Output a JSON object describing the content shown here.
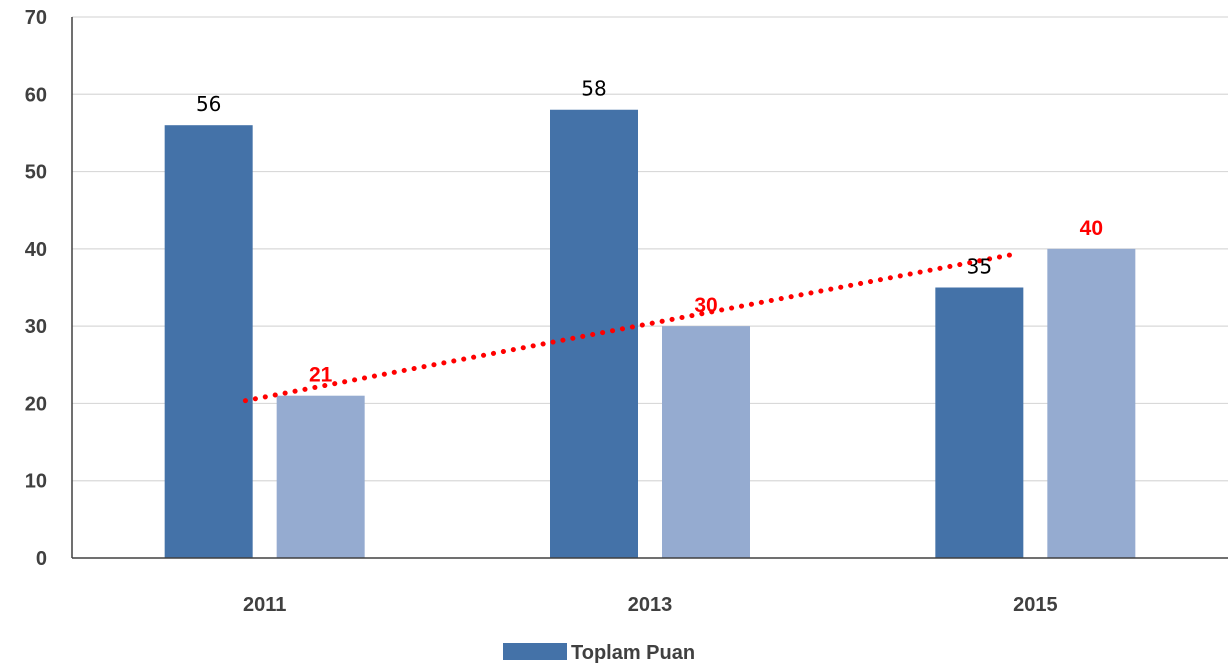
{
  "chart_data": {
    "type": "bar",
    "categories": [
      "2011",
      "2013",
      "2015"
    ],
    "series": [
      {
        "name": "Toplam Puan",
        "values": [
          56,
          58,
          35
        ]
      },
      {
        "name": "",
        "values": [
          21,
          30,
          40
        ]
      }
    ],
    "trendline": {
      "series_index": 1,
      "style": "dotted",
      "color": "#ff0000"
    },
    "ylim": [
      0,
      70
    ],
    "yticks": [
      0,
      10,
      20,
      30,
      40,
      50,
      60,
      70
    ],
    "grid": true,
    "legend": {
      "position": "bottom",
      "entries": [
        "Toplam Puan"
      ]
    },
    "colors": {
      "series0": "#4472a8",
      "series1": "#95abd0",
      "highlight_label": "#ff0000"
    },
    "title": "",
    "xlabel": "",
    "ylabel": ""
  }
}
